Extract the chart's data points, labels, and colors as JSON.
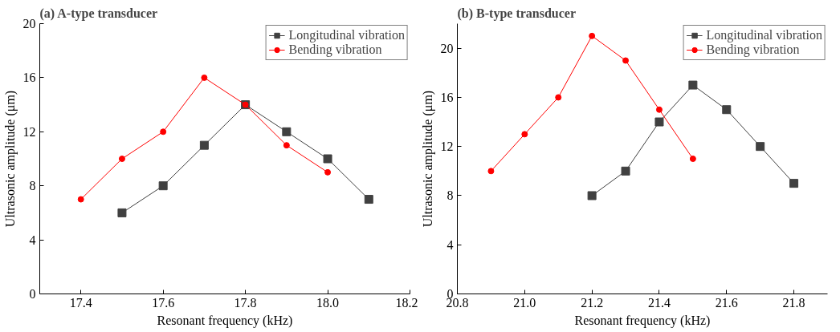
{
  "chart_data": [
    {
      "type": "line",
      "title": "(a) A-type transducer",
      "xlabel": "Resonant frequency (kHz)",
      "ylabel": "Ultrasonic amplitude (μm)",
      "xlim": [
        17.3,
        18.2
      ],
      "xticks": [
        17.4,
        17.6,
        17.8,
        {
          "value": 18.0,
          "label": "18.0"
        },
        18.2
      ],
      "ylim": [
        0,
        20
      ],
      "yticks": [
        0,
        4,
        8,
        12,
        16,
        20
      ],
      "grid": false,
      "legend": "top right",
      "line_style": "solid",
      "series": [
        {
          "name": "Longitudinal vibration",
          "color": "#404040",
          "marker": "square",
          "x": [
            17.5,
            17.6,
            17.7,
            17.8,
            17.9,
            18.0,
            18.1
          ],
          "values": [
            6,
            8,
            11,
            14,
            12,
            10,
            7
          ]
        },
        {
          "name": "Bending vibration",
          "color": "#ff0000",
          "marker": "circle",
          "x": [
            17.4,
            17.5,
            17.6,
            17.7,
            17.8,
            17.9,
            18.0
          ],
          "values": [
            7,
            10,
            12,
            16,
            14,
            11,
            9
          ]
        }
      ]
    },
    {
      "type": "line",
      "title": "(b) B-type transducer",
      "xlabel": "Resonant frequency (kHz)",
      "ylabel": "Ultrasonic amplitude (μm)",
      "xlim": [
        20.8,
        21.9
      ],
      "xticks": [
        20.8,
        {
          "value": 21.0,
          "label": "21.0"
        },
        21.2,
        21.4,
        21.6,
        21.8
      ],
      "ylim": [
        0,
        22
      ],
      "yticks": [
        0,
        4,
        8,
        12,
        16,
        20
      ],
      "grid": false,
      "legend": "top right",
      "line_style": "solid",
      "series": [
        {
          "name": "Longitudinal vibration",
          "color": "#404040",
          "marker": "square",
          "x": [
            21.2,
            21.3,
            21.4,
            21.5,
            21.6,
            21.7,
            21.8
          ],
          "values": [
            8,
            10,
            14,
            17,
            15,
            12,
            9
          ]
        },
        {
          "name": "Bending vibration",
          "color": "#ff0000",
          "marker": "circle",
          "x": [
            20.9,
            21.0,
            21.1,
            21.2,
            21.3,
            21.4,
            21.5
          ],
          "values": [
            10,
            13,
            16,
            21,
            19,
            15,
            11
          ]
        }
      ]
    }
  ]
}
